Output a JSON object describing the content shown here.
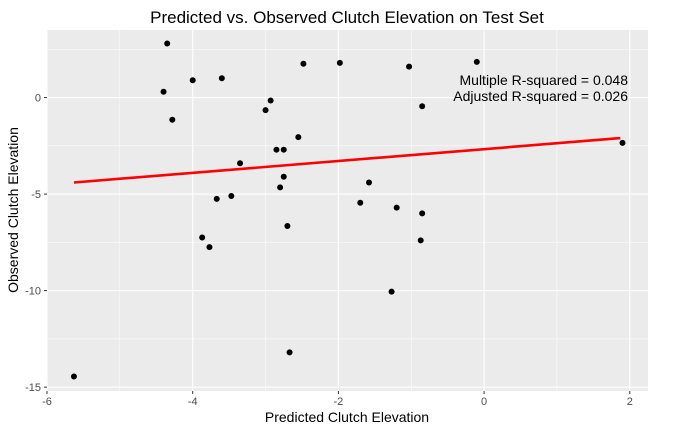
{
  "chart_data": {
    "type": "scatter",
    "title": "Predicted vs. Observed Clutch Elevation on Test Set",
    "xlabel": "Predicted Clutch Elevation",
    "ylabel": "Observed Clutch Elevation",
    "xlim": [
      -6,
      2.25
    ],
    "ylim": [
      -15.2,
      3.5
    ],
    "x_ticks": [
      -6,
      -4,
      -2,
      0,
      2
    ],
    "y_ticks": [
      -15,
      -10,
      -5,
      0
    ],
    "grid": true,
    "colors": {
      "panel": "#ebebeb",
      "grid_major": "#ffffff",
      "points": "#000000",
      "fit_line": "#ff0000",
      "tick_label": "#4d4d4d"
    },
    "points": [
      {
        "x": -4.35,
        "y": 2.8
      },
      {
        "x": -4.0,
        "y": 0.9
      },
      {
        "x": -3.6,
        "y": 1.0
      },
      {
        "x": -4.4,
        "y": 0.3
      },
      {
        "x": -4.28,
        "y": -1.15
      },
      {
        "x": -2.48,
        "y": 1.75
      },
      {
        "x": -1.98,
        "y": 1.8
      },
      {
        "x": -1.03,
        "y": 1.6
      },
      {
        "x": -0.1,
        "y": 1.85
      },
      {
        "x": -0.85,
        "y": -0.45
      },
      {
        "x": -2.93,
        "y": -0.15
      },
      {
        "x": -3.0,
        "y": -0.65
      },
      {
        "x": -2.55,
        "y": -2.05
      },
      {
        "x": -2.85,
        "y": -2.7
      },
      {
        "x": -2.75,
        "y": -2.7
      },
      {
        "x": -3.35,
        "y": -3.4
      },
      {
        "x": -2.75,
        "y": -4.1
      },
      {
        "x": -2.8,
        "y": -4.65
      },
      {
        "x": -3.47,
        "y": -5.1
      },
      {
        "x": -3.67,
        "y": -5.25
      },
      {
        "x": -2.7,
        "y": -6.65
      },
      {
        "x": -3.87,
        "y": -7.25
      },
      {
        "x": -3.77,
        "y": -7.75
      },
      {
        "x": -1.58,
        "y": -4.4
      },
      {
        "x": -1.7,
        "y": -5.45
      },
      {
        "x": -1.2,
        "y": -5.7
      },
      {
        "x": -0.85,
        "y": -6.0
      },
      {
        "x": -0.87,
        "y": -7.4
      },
      {
        "x": -1.27,
        "y": -10.05
      },
      {
        "x": 1.9,
        "y": -2.35
      },
      {
        "x": -2.67,
        "y": -13.2
      },
      {
        "x": -5.63,
        "y": -14.45
      }
    ],
    "fit_line": {
      "x": [
        -5.63,
        1.87
      ],
      "y": [
        -4.4,
        -2.1
      ]
    },
    "annotations": [
      "Multiple R-squared = 0.048",
      "Adjusted R-squared = 0.026"
    ]
  }
}
